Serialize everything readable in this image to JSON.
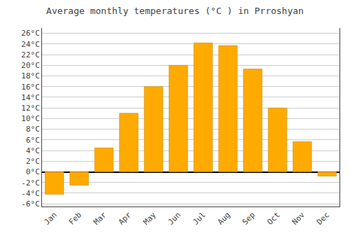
{
  "chart_data": {
    "type": "bar",
    "title": "Average monthly temperatures (°C ) in Prroshyan",
    "categories": [
      "Jan",
      "Feb",
      "Mar",
      "Apr",
      "May",
      "Jun",
      "Jul",
      "Aug",
      "Sep",
      "Oct",
      "Nov",
      "Dec"
    ],
    "values": [
      -4.2,
      -2.5,
      4.5,
      11.0,
      16.0,
      20.0,
      24.2,
      23.7,
      19.3,
      12.0,
      5.7,
      -0.8
    ],
    "color": "#FFAA00",
    "ylim": [
      -6.5,
      27
    ],
    "yticks": [
      {
        "value": -6,
        "label": "-6°C"
      },
      {
        "value": -4,
        "label": "-4°C"
      },
      {
        "value": -2,
        "label": "-2°C"
      },
      {
        "value": 0,
        "label": "0°C"
      },
      {
        "value": 2,
        "label": "2°C"
      },
      {
        "value": 4,
        "label": "4°C"
      },
      {
        "value": 6,
        "label": "6°C"
      },
      {
        "value": 8,
        "label": "8°C"
      },
      {
        "value": 10,
        "label": "10°C"
      },
      {
        "value": 12,
        "label": "12°C"
      },
      {
        "value": 14,
        "label": "14°C"
      },
      {
        "value": 16,
        "label": "16°C"
      },
      {
        "value": 18,
        "label": "18°C"
      },
      {
        "value": 20,
        "label": "20°C"
      },
      {
        "value": 22,
        "label": "22°C"
      },
      {
        "value": 24,
        "label": "24°C"
      },
      {
        "value": 26,
        "label": "26°C"
      }
    ],
    "grid": true
  }
}
